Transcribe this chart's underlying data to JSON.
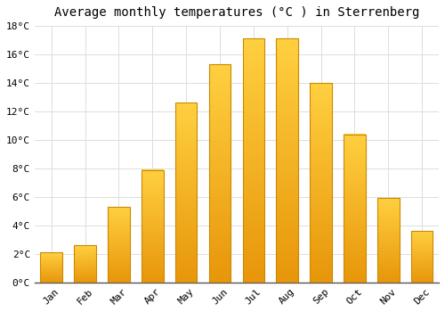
{
  "title": "Average monthly temperatures (°C ) in Sterrenberg",
  "months": [
    "Jan",
    "Feb",
    "Mar",
    "Apr",
    "May",
    "Jun",
    "Jul",
    "Aug",
    "Sep",
    "Oct",
    "Nov",
    "Dec"
  ],
  "values": [
    2.1,
    2.6,
    5.3,
    7.9,
    12.6,
    15.3,
    17.1,
    17.1,
    14.0,
    10.4,
    5.9,
    3.6
  ],
  "bar_color": "#FFA500",
  "bar_edge_color": "#CC8800",
  "background_color": "#FFFFFF",
  "grid_color": "#DDDDDD",
  "ylim": [
    0,
    18
  ],
  "ytick_step": 2,
  "title_fontsize": 10,
  "tick_fontsize": 8,
  "font_family": "monospace"
}
